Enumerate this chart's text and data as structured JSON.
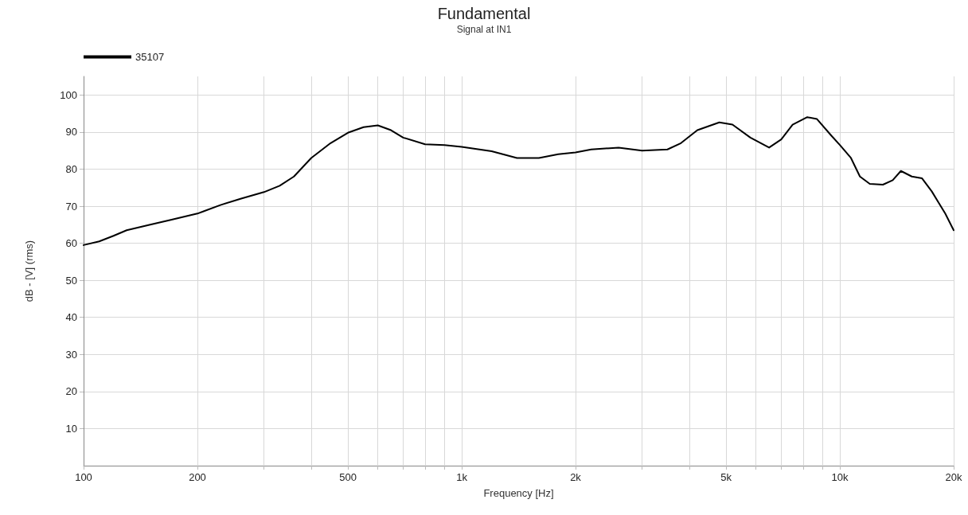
{
  "chart_data": {
    "type": "line",
    "title": "Fundamental",
    "subtitle": "Signal at IN1",
    "xlabel": "Frequency [Hz]",
    "ylabel": "dB - [V] (rms)",
    "log": "x",
    "grid": true,
    "legend": "top left",
    "marker": "none",
    "line_style": "solid",
    "xlim": [
      100,
      20000
    ],
    "ylim": [
      0,
      105
    ],
    "xticks": [
      100,
      200,
      {
        "value": 300,
        "label": null
      },
      {
        "value": 400,
        "label": null
      },
      500,
      {
        "value": 600,
        "label": null
      },
      {
        "value": 700,
        "label": null
      },
      {
        "value": 800,
        "label": null
      },
      {
        "value": 900,
        "label": null
      },
      {
        "value": 1000,
        "label": "1k"
      },
      {
        "value": 2000,
        "label": "2k"
      },
      {
        "value": 3000,
        "label": null
      },
      {
        "value": 4000,
        "label": null
      },
      {
        "value": 5000,
        "label": "5k"
      },
      {
        "value": 6000,
        "label": null
      },
      {
        "value": 7000,
        "label": null
      },
      {
        "value": 8000,
        "label": null
      },
      {
        "value": 9000,
        "label": null
      },
      {
        "value": 10000,
        "label": "10k"
      },
      {
        "value": 20000,
        "label": "20k"
      }
    ],
    "yticks": [
      10,
      20,
      30,
      40,
      50,
      60,
      70,
      80,
      90,
      100
    ],
    "series": [
      {
        "name": "35107",
        "color": "#000000",
        "x": [
          100,
          110,
          120,
          130,
          150,
          170,
          200,
          230,
          260,
          300,
          330,
          360,
          400,
          450,
          500,
          550,
          600,
          650,
          700,
          800,
          900,
          1000,
          1200,
          1400,
          1600,
          1800,
          2000,
          2200,
          2600,
          3000,
          3500,
          3800,
          4200,
          4800,
          5200,
          5800,
          6500,
          7000,
          7500,
          8200,
          8700,
          9500,
          10000,
          10700,
          11300,
          12000,
          13000,
          13800,
          14500,
          15500,
          16500,
          17500,
          19000,
          20000
        ],
        "values": [
          59.5,
          60.5,
          62,
          63.5,
          65,
          66.3,
          68,
          70.3,
          72,
          73.8,
          75.5,
          78,
          83,
          87,
          89.8,
          91.3,
          91.8,
          90.5,
          88.5,
          86.7,
          86.5,
          86,
          84.8,
          83,
          83,
          84,
          84.5,
          85.3,
          85.8,
          85,
          85.3,
          87,
          90.5,
          92.6,
          92,
          88.5,
          85.8,
          88,
          92,
          94,
          93.5,
          89,
          86.5,
          83,
          78,
          76,
          75.8,
          77,
          79.5,
          78,
          77.5,
          74,
          68,
          63.5
        ]
      }
    ]
  }
}
